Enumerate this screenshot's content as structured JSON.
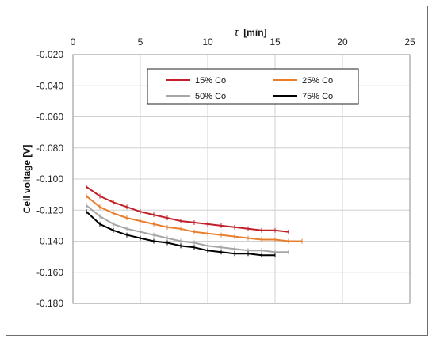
{
  "chart_data": {
    "type": "line",
    "title": "",
    "xlabel_symbol": "τ",
    "xlabel_unit": "[min]",
    "ylabel": "Cell voltage [V]",
    "xlim": [
      0,
      25
    ],
    "ylim": [
      -0.18,
      -0.02
    ],
    "x_ticks": [
      0,
      5,
      10,
      15,
      20,
      25
    ],
    "y_ticks": [
      -0.02,
      -0.04,
      -0.06,
      -0.08,
      -0.1,
      -0.12,
      -0.14,
      -0.16,
      -0.18
    ],
    "y_tick_labels": [
      "-0.020",
      "-0.040",
      "-0.060",
      "-0.080",
      "-0.100",
      "-0.120",
      "-0.140",
      "-0.160",
      "-0.180"
    ],
    "x_axis_position": "top",
    "grid": true,
    "legend_position": "top-center",
    "error_bars": true,
    "series": [
      {
        "name": "15% Co",
        "color": "#c0202a",
        "x": [
          1,
          2,
          3,
          4,
          5,
          6,
          7,
          8,
          9,
          10,
          11,
          12,
          13,
          14,
          15,
          16
        ],
        "values": [
          -0.105,
          -0.111,
          -0.115,
          -0.118,
          -0.121,
          -0.123,
          -0.125,
          -0.127,
          -0.128,
          -0.129,
          -0.13,
          -0.131,
          -0.132,
          -0.133,
          -0.133,
          -0.134
        ]
      },
      {
        "name": "25% Co",
        "color": "#e87e2c",
        "x": [
          1,
          2,
          3,
          4,
          5,
          6,
          7,
          8,
          9,
          10,
          11,
          12,
          13,
          14,
          15,
          16,
          17
        ],
        "values": [
          -0.111,
          -0.118,
          -0.122,
          -0.125,
          -0.127,
          -0.129,
          -0.131,
          -0.132,
          -0.134,
          -0.135,
          -0.136,
          -0.137,
          -0.138,
          -0.139,
          -0.139,
          -0.14,
          -0.14
        ]
      },
      {
        "name": "50% Co",
        "color": "#a6a6a6",
        "x": [
          1,
          2,
          3,
          4,
          5,
          6,
          7,
          8,
          9,
          10,
          11,
          12,
          13,
          14,
          15,
          16
        ],
        "values": [
          -0.117,
          -0.124,
          -0.129,
          -0.132,
          -0.134,
          -0.136,
          -0.138,
          -0.14,
          -0.141,
          -0.143,
          -0.144,
          -0.145,
          -0.146,
          -0.146,
          -0.147,
          -0.147
        ]
      },
      {
        "name": "75% Co",
        "color": "#000000",
        "x": [
          1,
          2,
          3,
          4,
          5,
          6,
          7,
          8,
          9,
          10,
          11,
          12,
          13,
          14,
          15
        ],
        "values": [
          -0.121,
          -0.129,
          -0.133,
          -0.136,
          -0.138,
          -0.14,
          -0.141,
          -0.143,
          -0.144,
          -0.146,
          -0.147,
          -0.148,
          -0.148,
          -0.149,
          -0.149
        ]
      }
    ]
  }
}
